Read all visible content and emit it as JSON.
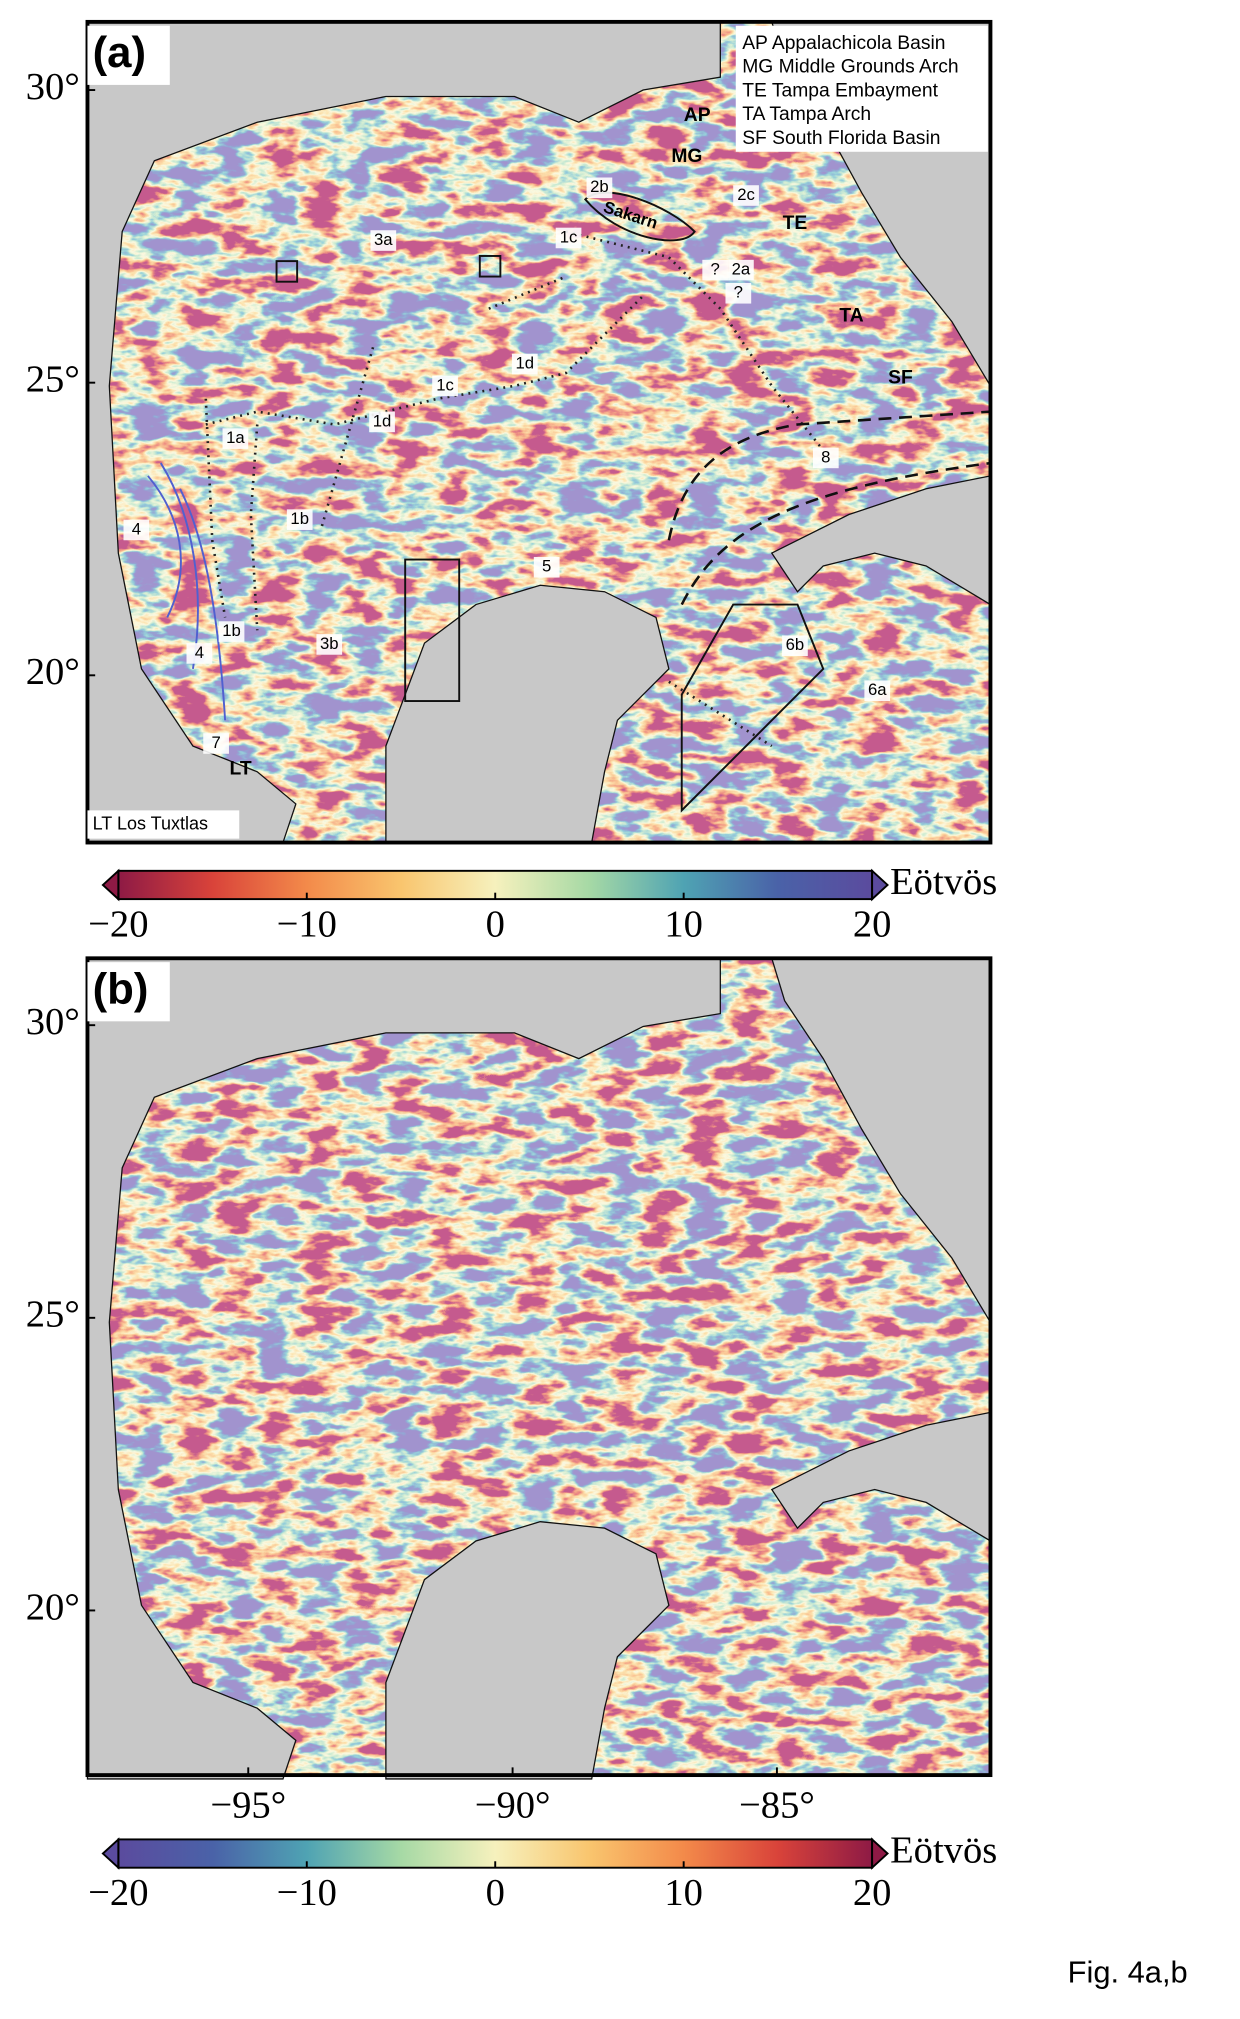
{
  "panels": [
    {
      "label": "(a)",
      "colormap": [
        "#8e1a45",
        "#d9433a",
        "#f38a4a",
        "#f9c56e",
        "#f6f1bd",
        "#a6d9a5",
        "#4fa3b3",
        "#4a62a8",
        "#5b4b9e"
      ],
      "lat_ticks": [
        {
          "value": 30,
          "label": "30°"
        },
        {
          "value": 25,
          "label": "25°"
        },
        {
          "value": 20,
          "label": "20°"
        }
      ],
      "legend": [
        "AP Appalachicola Basin",
        "MG Middle Grounds Arch",
        "TE Tampa Embayment",
        "TA Tampa Arch",
        "SF South Florida Basin"
      ],
      "note": "LT Los Tuxtlas",
      "annotations": [
        "AP",
        "MG",
        "2c",
        "TE",
        "2b",
        "Sakarn",
        "1c",
        "3a",
        "2a",
        "?",
        "?",
        "TA",
        "SF",
        "1d",
        "1c",
        "1d",
        "1a",
        "8",
        "4",
        "1b",
        "5",
        "4",
        "1b",
        "3b",
        "6b",
        "6a",
        "7",
        "LT"
      ],
      "colorbar": {
        "unit": "Eötvös",
        "range": [
          -20,
          20
        ],
        "ticks": [
          {
            "value": -20,
            "label": "−20"
          },
          {
            "value": -10,
            "label": "−10"
          },
          0,
          10,
          20
        ]
      }
    },
    {
      "label": "(b)",
      "colormap": [
        "#5b4b9e",
        "#4a62a8",
        "#4fa3b3",
        "#a6d9a5",
        "#f6f1bd",
        "#f9c56e",
        "#f38a4a",
        "#d9433a",
        "#8e1a45"
      ],
      "lat_ticks": [
        {
          "value": 30,
          "label": "30°"
        },
        {
          "value": 25,
          "label": "25°"
        },
        {
          "value": 20,
          "label": "20°"
        }
      ],
      "lon_ticks": [
        {
          "value": -95,
          "label": "−95°"
        },
        {
          "value": -90,
          "label": "−90°"
        },
        {
          "value": -85,
          "label": "−85°"
        }
      ],
      "colorbar": {
        "unit": "Eötvös",
        "range": [
          -20,
          20
        ],
        "ticks": [
          {
            "value": -20,
            "label": "−20"
          },
          {
            "value": -10,
            "label": "−10"
          },
          0,
          10,
          20
        ]
      }
    }
  ],
  "caption": "Fig. 4a,b"
}
